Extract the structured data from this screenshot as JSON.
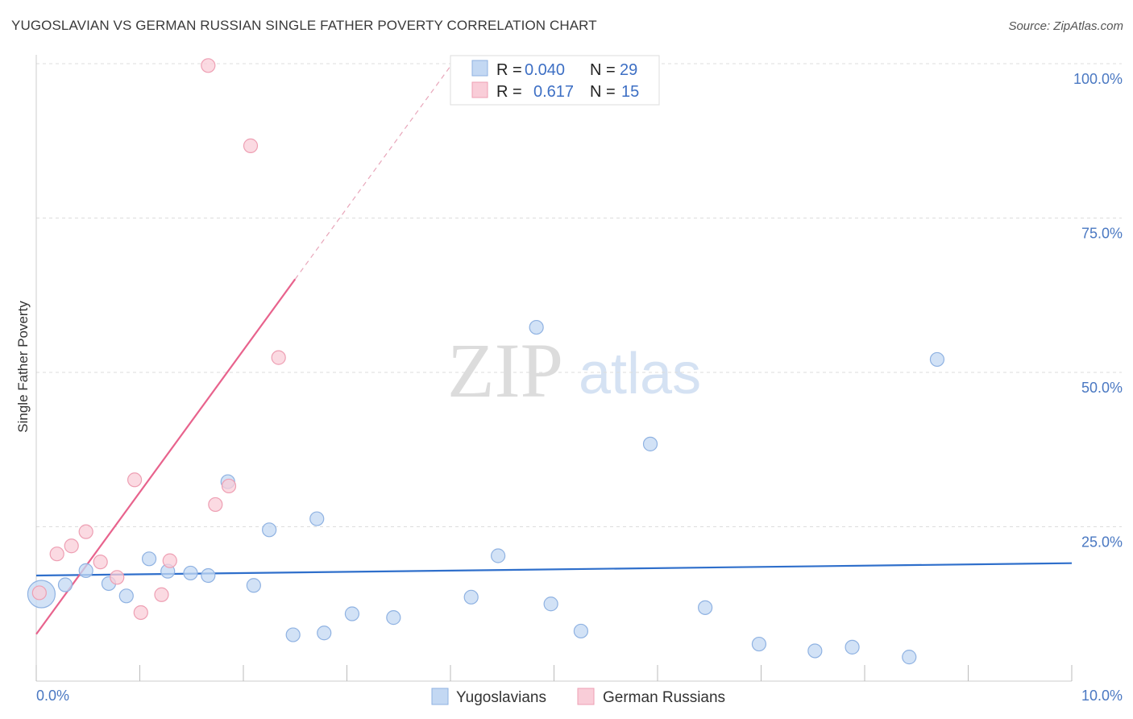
{
  "header": {
    "title": "YUGOSLAVIAN VS GERMAN RUSSIAN SINGLE FATHER POVERTY CORRELATION CHART",
    "source": "Source: ZipAtlas.com"
  },
  "watermark": {
    "zip": "ZIP",
    "atlas": "atlas"
  },
  "legend": {
    "r_label": "R =",
    "n_label": "N =",
    "rows": [
      {
        "r": "0.040",
        "n": "29",
        "color": "#aac8f0"
      },
      {
        "r": "0.617",
        "n": "15",
        "color": "#f7b8c8"
      }
    ]
  },
  "colors": {
    "blue_fill": "#c3d8f3",
    "blue_stroke": "#8fb2e2",
    "blue_line": "#2f6fcb",
    "pink_fill": "#f9cdd8",
    "pink_stroke": "#ee9fb3",
    "pink_line": "#e8638d",
    "grid": "#dddddd",
    "tick_text": "#4a78c2"
  },
  "chart_data": {
    "type": "scatter",
    "title": "YUGOSLAVIAN VS GERMAN RUSSIAN SINGLE FATHER POVERTY CORRELATION CHART",
    "xlabel": "",
    "ylabel": "Single Father Poverty",
    "xlim": [
      0,
      10
    ],
    "ylim": [
      0,
      100
    ],
    "x_tick_labels": [
      "0.0%",
      "10.0%"
    ],
    "y_ticks": [
      25,
      50,
      75,
      100
    ],
    "y_tick_labels": [
      "25.0%",
      "50.0%",
      "75.0%",
      "100.0%"
    ],
    "grid": true,
    "legend_position": "top-center",
    "series": [
      {
        "name": "Yugoslavians",
        "r": 0.04,
        "n": 29,
        "trend": {
          "x0": 0.0,
          "y0": 17.1,
          "x1": 10.0,
          "y1": 19.1,
          "dashed_to": null
        },
        "points": [
          {
            "x": 0.05,
            "y": 14.1,
            "size": "large"
          },
          {
            "x": 0.28,
            "y": 15.6
          },
          {
            "x": 0.48,
            "y": 17.9
          },
          {
            "x": 0.7,
            "y": 15.8
          },
          {
            "x": 0.87,
            "y": 13.8
          },
          {
            "x": 1.09,
            "y": 19.8
          },
          {
            "x": 1.27,
            "y": 17.8
          },
          {
            "x": 1.49,
            "y": 17.5
          },
          {
            "x": 1.66,
            "y": 17.1
          },
          {
            "x": 1.85,
            "y": 32.3
          },
          {
            "x": 2.1,
            "y": 15.5
          },
          {
            "x": 2.25,
            "y": 24.5
          },
          {
            "x": 2.48,
            "y": 7.5
          },
          {
            "x": 2.71,
            "y": 26.3
          },
          {
            "x": 2.78,
            "y": 7.8
          },
          {
            "x": 3.05,
            "y": 10.9
          },
          {
            "x": 3.45,
            "y": 10.3
          },
          {
            "x": 4.2,
            "y": 13.6
          },
          {
            "x": 4.46,
            "y": 20.3
          },
          {
            "x": 4.83,
            "y": 57.3
          },
          {
            "x": 4.97,
            "y": 12.5
          },
          {
            "x": 5.26,
            "y": 8.1
          },
          {
            "x": 5.93,
            "y": 38.4
          },
          {
            "x": 6.46,
            "y": 11.9
          },
          {
            "x": 6.98,
            "y": 6.0
          },
          {
            "x": 7.52,
            "y": 4.9
          },
          {
            "x": 7.88,
            "y": 5.5
          },
          {
            "x": 8.43,
            "y": 3.9
          },
          {
            "x": 8.7,
            "y": 52.1
          }
        ]
      },
      {
        "name": "German Russians",
        "r": 0.617,
        "n": 15,
        "trend": {
          "x0": 0.0,
          "y0": 7.6,
          "x1": 2.5,
          "y1": 65.1,
          "dashed_to": {
            "x": 4.0,
            "y": 99.6
          }
        },
        "points": [
          {
            "x": 0.03,
            "y": 14.3
          },
          {
            "x": 0.2,
            "y": 20.6
          },
          {
            "x": 0.34,
            "y": 21.9
          },
          {
            "x": 0.48,
            "y": 24.2
          },
          {
            "x": 0.62,
            "y": 19.3
          },
          {
            "x": 0.78,
            "y": 16.8
          },
          {
            "x": 0.95,
            "y": 32.6
          },
          {
            "x": 1.01,
            "y": 11.1
          },
          {
            "x": 1.21,
            "y": 14.0
          },
          {
            "x": 1.29,
            "y": 19.5
          },
          {
            "x": 1.66,
            "y": 99.7
          },
          {
            "x": 1.73,
            "y": 28.6
          },
          {
            "x": 1.86,
            "y": 31.6
          },
          {
            "x": 2.07,
            "y": 86.7
          },
          {
            "x": 2.34,
            "y": 52.4
          }
        ]
      }
    ]
  }
}
